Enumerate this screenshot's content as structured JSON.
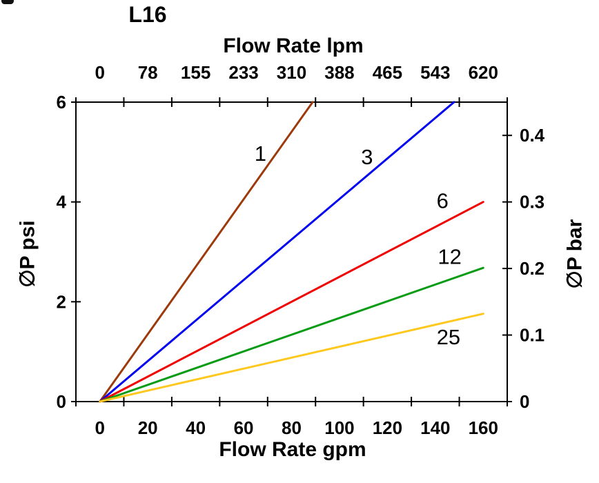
{
  "chart_data": {
    "type": "line",
    "title": "L16",
    "grid": "off",
    "legend": "none (inline series labels)",
    "x_axis_top": {
      "title": "Flow Rate lpm",
      "tick_labels": [
        "0",
        "78",
        "155",
        "233",
        "310",
        "388",
        "465",
        "543",
        "620"
      ],
      "tick_values_lpm": [
        0,
        78,
        155,
        233,
        310,
        388,
        465,
        543,
        620
      ]
    },
    "x_axis_bottom": {
      "title": "Flow Rate gpm",
      "tick_labels": [
        "0",
        "20",
        "40",
        "60",
        "80",
        "100",
        "120",
        "140",
        "160"
      ],
      "tick_values_gpm": [
        0,
        20,
        40,
        60,
        80,
        100,
        120,
        140,
        160
      ],
      "range_gpm": [
        -10,
        170
      ]
    },
    "y_axis_left": {
      "title": "∅P psi",
      "tick_labels": [
        "0",
        "2",
        "4",
        "6"
      ],
      "tick_values_psi": [
        0,
        2,
        4,
        6
      ],
      "range_psi": [
        0,
        6
      ]
    },
    "y_axis_right": {
      "title": "∅P bar",
      "tick_labels": [
        "0",
        "0.1",
        "0.2",
        "0.3",
        "0.4"
      ],
      "tick_values_bar": [
        0,
        0.1,
        0.2,
        0.3,
        0.4
      ],
      "range_bar": [
        0,
        0.45
      ]
    },
    "series": [
      {
        "label": "1",
        "color": "#9c3a0c",
        "points_gpm_psi": [
          [
            0,
            0
          ],
          [
            88.8,
            6.0
          ]
        ],
        "label_pos_gpm_psi": [
          67.0,
          4.97
        ]
      },
      {
        "label": "3",
        "color": "#0000f0",
        "points_gpm_psi": [
          [
            0,
            0
          ],
          [
            147.8,
            6.0
          ]
        ],
        "label_pos_gpm_psi": [
          111.5,
          4.9
        ]
      },
      {
        "label": "6",
        "color": "#f00000",
        "points_gpm_psi": [
          [
            0,
            0
          ],
          [
            160,
            4.0
          ]
        ],
        "label_pos_gpm_psi": [
          143.0,
          4.02
        ]
      },
      {
        "label": "12",
        "color": "#089c14",
        "points_gpm_psi": [
          [
            0,
            0
          ],
          [
            160,
            2.68
          ]
        ],
        "label_pos_gpm_psi": [
          146.0,
          2.9
        ]
      },
      {
        "label": "25",
        "color": "#ffc81e",
        "points_gpm_psi": [
          [
            0,
            0
          ],
          [
            160,
            1.76
          ]
        ],
        "label_pos_gpm_psi": [
          145.5,
          1.29
        ]
      }
    ]
  }
}
